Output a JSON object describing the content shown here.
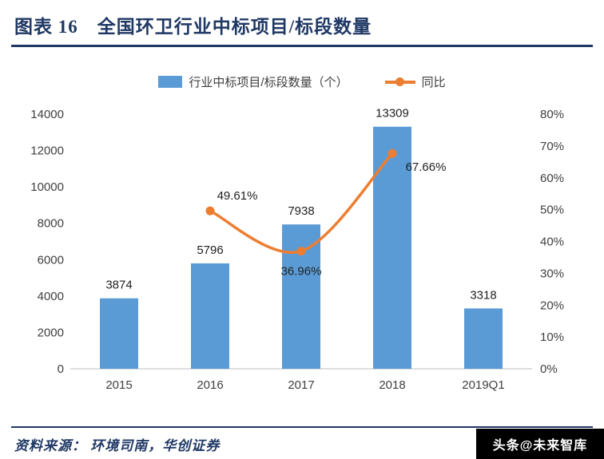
{
  "header": {
    "title": "图表 16　全国环卫行业中标项目/标段数量"
  },
  "legend": {
    "bars": "行业中标项目/标段数量（个）",
    "line": "同比"
  },
  "colors": {
    "accent": "#1F3864",
    "bar": "#5B9BD5",
    "line": "#ED7D31"
  },
  "chart_data": {
    "type": "bar",
    "subtype": "bar+line combo",
    "title": "全国环卫行业中标项目/标段数量",
    "categories": [
      "2015",
      "2016",
      "2017",
      "2018",
      "2019Q1"
    ],
    "series": [
      {
        "name": "行业中标项目/标段数量（个）",
        "type": "bar",
        "axis": "left",
        "color": "#5B9BD5",
        "values": [
          3874,
          5796,
          7938,
          13309,
          3318
        ]
      },
      {
        "name": "同比",
        "type": "line",
        "axis": "right",
        "color": "#ED7D31",
        "values": [
          null,
          49.61,
          36.96,
          67.66,
          null
        ],
        "label_suffix": "%"
      }
    ],
    "left_axis": {
      "min": 0,
      "max": 14000,
      "step": 2000,
      "ticks": [
        "0",
        "2000",
        "4000",
        "6000",
        "8000",
        "10000",
        "12000",
        "14000"
      ]
    },
    "right_axis": {
      "min": 0,
      "max": 80,
      "step": 10,
      "ticks": [
        "0%",
        "10%",
        "20%",
        "30%",
        "40%",
        "50%",
        "60%",
        "70%",
        "80%"
      ]
    },
    "grid": "off",
    "legend_position": "top"
  },
  "footer": {
    "source": "资料来源：  环境司南，华创证券",
    "watermark": "头条@未来智库"
  }
}
